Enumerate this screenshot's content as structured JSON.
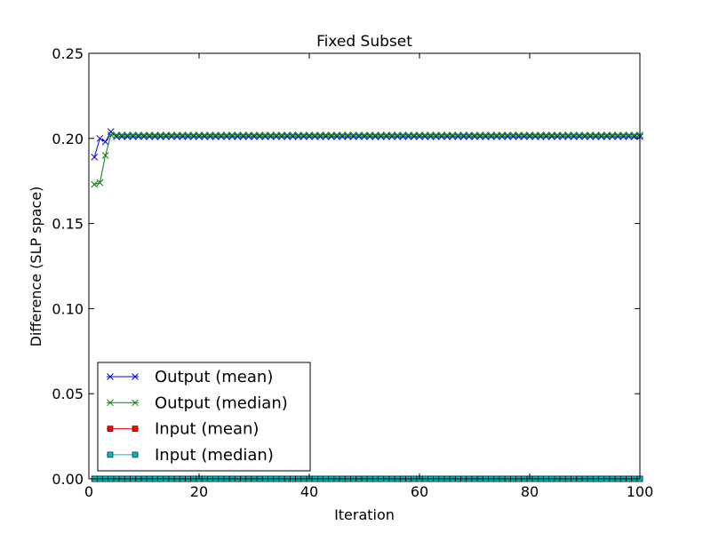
{
  "chart_data": {
    "type": "line",
    "title": "Fixed Subset",
    "xlabel": "Iteration",
    "ylabel": "Difference (SLP space)",
    "xlim": [
      0,
      100
    ],
    "ylim": [
      0,
      0.25
    ],
    "x_ticks": [
      0,
      20,
      40,
      60,
      80,
      100
    ],
    "x_tick_labels": [
      "0",
      "20",
      "40",
      "60",
      "80",
      "100"
    ],
    "y_ticks": [
      0,
      0.05,
      0.1,
      0.15,
      0.2,
      0.25
    ],
    "y_tick_labels": [
      "0.00",
      "0.05",
      "0.10",
      "0.15",
      "0.20",
      "0.25"
    ],
    "grid": false,
    "legend_position": "lower-left",
    "x_start": 1,
    "x_end": 100,
    "series": [
      {
        "name": "Output (mean)",
        "color": "#0000ff",
        "marker": "x",
        "values_first": [
          0.189,
          0.2,
          0.198,
          0.204
        ],
        "steady_value": 0.201
      },
      {
        "name": "Output (median)",
        "color": "#008000",
        "marker": "x",
        "values_first": [
          0.173,
          0.174,
          0.19,
          0.202
        ],
        "steady_value": 0.202
      },
      {
        "name": "Input (mean)",
        "color": "#ff0000",
        "marker": "square",
        "values_first": [],
        "steady_value": 0.0
      },
      {
        "name": "Input (median)",
        "color": "#00bfbf",
        "marker": "square",
        "values_first": [],
        "steady_value": 0.0
      }
    ]
  }
}
